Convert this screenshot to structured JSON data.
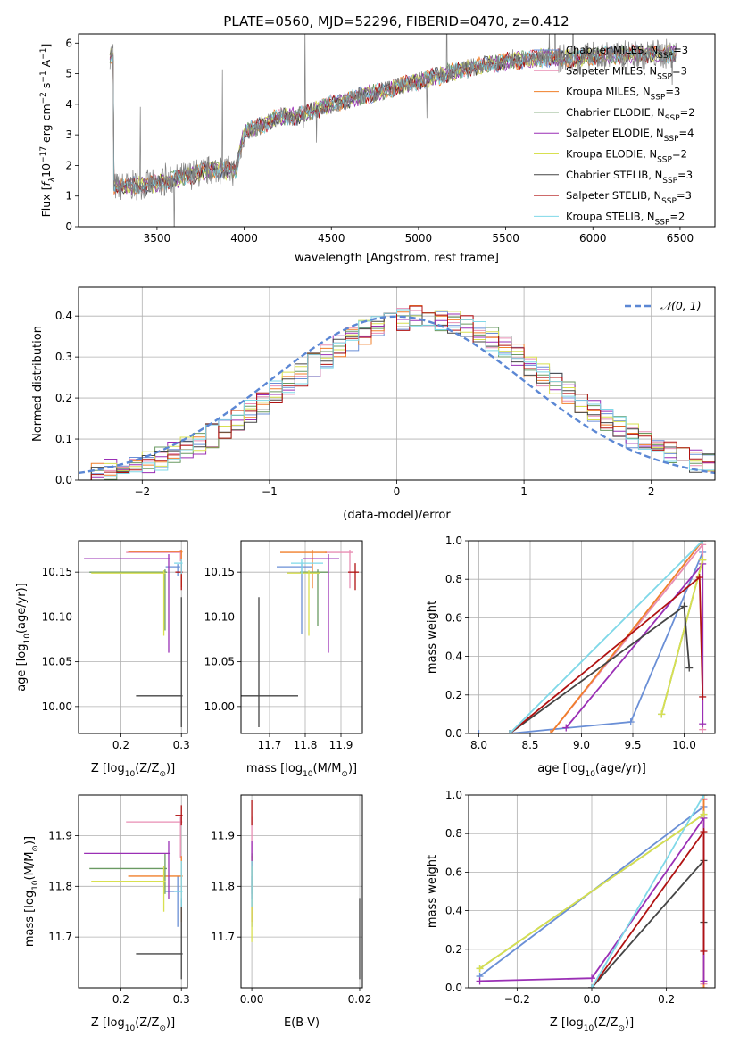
{
  "figure_title": "PLATE=0560, MJD=52296, FIBERID=0470, z=0.412",
  "chart_data": [
    {
      "id": "spectrum",
      "type": "line",
      "title": "PLATE=0560, MJD=52296, FIBERID=0470, z=0.412",
      "xlabel": "wavelength [Angstrom, rest frame]",
      "ylabel_parts": [
        "Flux [",
        "f",
        "λ",
        "10",
        "−17",
        " erg cm",
        "−2",
        " s",
        "−1",
        " A",
        "−1",
        "]"
      ],
      "xlim": [
        3050,
        6700
      ],
      "ylim": [
        0,
        6.3
      ],
      "xticks": [
        3500,
        4000,
        4500,
        5000,
        5500,
        6000,
        6500
      ],
      "yticks": [
        0,
        1,
        2,
        3,
        4,
        5,
        6
      ],
      "grid": false,
      "legend_position": "upper-right",
      "continuum_points": [
        [
          3250,
          1.3
        ],
        [
          3500,
          1.4
        ],
        [
          3700,
          1.7
        ],
        [
          3850,
          1.9
        ],
        [
          3950,
          1.8
        ],
        [
          4000,
          3.1
        ],
        [
          4100,
          3.3
        ],
        [
          4200,
          3.6
        ],
        [
          4300,
          3.6
        ],
        [
          4500,
          4.0
        ],
        [
          4700,
          4.3
        ],
        [
          4900,
          4.6
        ],
        [
          5100,
          4.9
        ],
        [
          5300,
          5.2
        ],
        [
          5500,
          5.4
        ],
        [
          5700,
          5.5
        ],
        [
          5900,
          5.5
        ],
        [
          6100,
          5.6
        ],
        [
          6400,
          5.65
        ]
      ],
      "data_range": [
        3230,
        6480
      ],
      "series": [
        {
          "label": "Chabrier MILES, N",
          "sub": "SSP",
          "suffix": "=3",
          "color": "#6a8fd6"
        },
        {
          "label": "Salpeter MILES, N",
          "sub": "SSP",
          "suffix": "=3",
          "color": "#e88eb4"
        },
        {
          "label": "Kroupa MILES, N",
          "sub": "SSP",
          "suffix": "=3",
          "color": "#f07f2a"
        },
        {
          "label": "Chabrier ELODIE, N",
          "sub": "SSP",
          "suffix": "=2",
          "color": "#6a9a62"
        },
        {
          "label": "Salpeter ELODIE, N",
          "sub": "SSP",
          "suffix": "=4",
          "color": "#9a2fb5"
        },
        {
          "label": "Kroupa ELODIE, N",
          "sub": "SSP",
          "suffix": "=2",
          "color": "#d8e050"
        },
        {
          "label": "Chabrier STELIB, N",
          "sub": "SSP",
          "suffix": "=3",
          "color": "#454545"
        },
        {
          "label": "Salpeter STELIB, N",
          "sub": "SSP",
          "suffix": "=3",
          "color": "#b01212"
        },
        {
          "label": "Kroupa STELIB, N",
          "sub": "SSP",
          "suffix": "=2",
          "color": "#7fd8e8"
        }
      ],
      "data_color": "#808080"
    },
    {
      "id": "residuals",
      "type": "histogram",
      "xlabel": "(data-model)/error",
      "ylabel": "Normed distribution",
      "xlim": [
        -2.5,
        2.5
      ],
      "ylim": [
        0,
        0.47
      ],
      "xticks": [
        -2,
        -1,
        0,
        1,
        2
      ],
      "yticks": [
        0.0,
        0.1,
        0.2,
        0.3,
        0.4
      ],
      "grid": true,
      "legend": "𝒩(0, 1)",
      "legend_position": "upper-right",
      "reference_color": "#5b87d4"
    },
    {
      "id": "age_vs_Z",
      "type": "errorbar",
      "xlabel_parts": [
        "Z [log",
        "10",
        "(Z/Z",
        "⊙",
        ")]"
      ],
      "ylabel_parts": [
        "age  [log",
        "10",
        "(age/yr)]"
      ],
      "xlim": [
        0.13,
        0.31
      ],
      "ylim": [
        9.97,
        10.185
      ],
      "xticks": [
        0.2,
        0.3
      ],
      "yticks": [
        10.0,
        10.05,
        10.1,
        10.15
      ],
      "grid": true,
      "points": [
        {
          "x": 0.294,
          "y": 10.156,
          "xerr": [
            0.02,
            0.004
          ],
          "yerr": [
            0.01,
            0.003
          ],
          "color": "#6a8fd6"
        },
        {
          "x": 0.2985,
          "y": 10.172,
          "xerr": [
            0.09,
            0.003
          ],
          "yerr": [
            0.01,
            0.003
          ],
          "color": "#e88eb4"
        },
        {
          "x": 0.3,
          "y": 10.173,
          "xerr": [
            0.088,
            0.002
          ],
          "yerr": [
            0.04,
            0.002
          ],
          "color": "#f07f2a"
        },
        {
          "x": 0.273,
          "y": 10.15,
          "xerr": [
            0.125,
            0.003
          ],
          "yerr": [
            0.065,
            0.003
          ],
          "color": "#6a9a62"
        },
        {
          "x": 0.279,
          "y": 10.165,
          "xerr": [
            0.14,
            0.003
          ],
          "yerr": [
            0.105,
            0.005
          ],
          "color": "#9a2fb5"
        },
        {
          "x": 0.271,
          "y": 10.149,
          "xerr": [
            0.12,
            0.003
          ],
          "yerr": [
            0.07,
            0.003
          ],
          "color": "#d8e050"
        },
        {
          "x": 0.3,
          "y": 10.012,
          "xerr": [
            0.075,
            0.002
          ],
          "yerr": [
            0.035,
            0.11
          ],
          "color": "#454545"
        },
        {
          "x": 0.3,
          "y": 10.15,
          "xerr": [
            0.01,
            0.002
          ],
          "yerr": [
            0.02,
            0.01
          ],
          "color": "#b01212"
        },
        {
          "x": 0.3,
          "y": 10.16,
          "xerr": [
            0.012,
            0.002
          ],
          "yerr": [
            0.012,
            0.005
          ],
          "color": "#7fd8e8"
        }
      ]
    },
    {
      "id": "age_vs_mass",
      "type": "errorbar",
      "xlabel_parts": [
        "mass [log",
        "10",
        "(M/M",
        "⊙",
        ")]"
      ],
      "ylabel_parts": [],
      "xlim": [
        11.62,
        11.96
      ],
      "ylim": [
        9.97,
        10.185
      ],
      "xticks": [
        11.7,
        11.8,
        11.9
      ],
      "yticks": [
        10.0,
        10.05,
        10.1,
        10.15
      ],
      "grid": true,
      "points": [
        {
          "x": 11.79,
          "y": 10.156,
          "xerr": [
            0.07,
            0.03
          ],
          "yerr": [
            0.075,
            0.003
          ],
          "color": "#6a8fd6"
        },
        {
          "x": 11.925,
          "y": 10.172,
          "xerr": [
            0.07,
            0.01
          ],
          "yerr": [
            0.04,
            0.003
          ],
          "color": "#e88eb4"
        },
        {
          "x": 11.82,
          "y": 10.172,
          "xerr": [
            0.09,
            0.04
          ],
          "yerr": [
            0.04,
            0.003
          ],
          "color": "#f07f2a"
        },
        {
          "x": 11.835,
          "y": 10.15,
          "xerr": [
            0.05,
            0.03
          ],
          "yerr": [
            0.06,
            0.003
          ],
          "color": "#6a9a62"
        },
        {
          "x": 11.865,
          "y": 10.165,
          "xerr": [
            0.07,
            0.03
          ],
          "yerr": [
            0.105,
            0.005
          ],
          "color": "#9a2fb5"
        },
        {
          "x": 11.81,
          "y": 10.149,
          "xerr": [
            0.06,
            0.03
          ],
          "yerr": [
            0.07,
            0.003
          ],
          "color": "#d8e050"
        },
        {
          "x": 11.67,
          "y": 10.012,
          "xerr": [
            0.05,
            0.11
          ],
          "yerr": [
            0.035,
            0.11
          ],
          "color": "#454545"
        },
        {
          "x": 11.94,
          "y": 10.15,
          "xerr": [
            0.02,
            0.01
          ],
          "yerr": [
            0.02,
            0.01
          ],
          "color": "#b01212"
        },
        {
          "x": 11.79,
          "y": 10.16,
          "xerr": [
            0.03,
            0.06
          ],
          "yerr": [
            0.012,
            0.005
          ],
          "color": "#7fd8e8"
        }
      ]
    },
    {
      "id": "massweight_vs_age",
      "type": "line",
      "xlabel_parts": [
        "age  [log",
        "10",
        "(age/yr)]"
      ],
      "ylabel": "mass weight",
      "xlim": [
        7.9,
        10.3
      ],
      "ylim": [
        0,
        1.0
      ],
      "xticks": [
        8.0,
        8.5,
        9.0,
        9.5,
        10.0
      ],
      "yticks": [
        0.0,
        0.2,
        0.4,
        0.6,
        0.8,
        1.0
      ],
      "grid": true,
      "series": [
        {
          "color": "#6a8fd6",
          "x": [
            8.0,
            8.3,
            9.48,
            10.18
          ],
          "y": [
            0.0,
            0.0,
            0.06,
            0.94
          ]
        },
        {
          "color": "#e88eb4",
          "x": [
            8.7,
            10.18,
            10.18
          ],
          "y": [
            0.0,
            0.98,
            0.02
          ]
        },
        {
          "color": "#f07f2a",
          "x": [
            8.7,
            10.18
          ],
          "y": [
            0.0,
            1.0
          ]
        },
        {
          "color": "#6a9a62",
          "x": [
            9.78,
            10.18
          ],
          "y": [
            0.1,
            0.9
          ]
        },
        {
          "color": "#9a2fb5",
          "x": [
            8.85,
            10.18,
            10.18
          ],
          "y": [
            0.03,
            0.88,
            0.05
          ]
        },
        {
          "color": "#d8e050",
          "x": [
            9.78,
            10.18
          ],
          "y": [
            0.1,
            0.9
          ]
        },
        {
          "color": "#454545",
          "x": [
            8.3,
            10.0,
            10.05
          ],
          "y": [
            0.0,
            0.66,
            0.34
          ]
        },
        {
          "color": "#b01212",
          "x": [
            8.3,
            10.15,
            10.18
          ],
          "y": [
            0.0,
            0.81,
            0.19
          ]
        },
        {
          "color": "#7fd8e8",
          "x": [
            8.3,
            10.18
          ],
          "y": [
            0.0,
            1.0
          ]
        }
      ]
    },
    {
      "id": "mass_vs_Z",
      "type": "errorbar",
      "xlabel_parts": [
        "Z [log",
        "10",
        "(Z/Z",
        "⊙",
        ")]"
      ],
      "ylabel_parts": [
        "mass [log",
        "10",
        "(M/M",
        "⊙",
        ")]"
      ],
      "xlim": [
        0.13,
        0.31
      ],
      "ylim": [
        11.6,
        11.98
      ],
      "xticks": [
        0.2,
        0.3
      ],
      "yticks": [
        11.7,
        11.8,
        11.9
      ],
      "grid": true,
      "points": [
        {
          "x": 0.294,
          "y": 11.79,
          "xerr": [
            0.02,
            0.004
          ],
          "yerr": [
            0.07,
            0.03
          ],
          "color": "#6a8fd6"
        },
        {
          "x": 0.2985,
          "y": 11.927,
          "xerr": [
            0.09,
            0.003
          ],
          "yerr": [
            0.07,
            0.01
          ],
          "color": "#e88eb4"
        },
        {
          "x": 0.3,
          "y": 11.82,
          "xerr": [
            0.088,
            0.002
          ],
          "yerr": [
            0.09,
            0.04
          ],
          "color": "#f07f2a"
        },
        {
          "x": 0.273,
          "y": 11.835,
          "xerr": [
            0.125,
            0.003
          ],
          "yerr": [
            0.05,
            0.03
          ],
          "color": "#6a9a62"
        },
        {
          "x": 0.279,
          "y": 11.865,
          "xerr": [
            0.14,
            0.003
          ],
          "yerr": [
            0.09,
            0.025
          ],
          "color": "#9a2fb5"
        },
        {
          "x": 0.271,
          "y": 11.81,
          "xerr": [
            0.12,
            0.003
          ],
          "yerr": [
            0.06,
            0.03
          ],
          "color": "#d8e050"
        },
        {
          "x": 0.3,
          "y": 11.667,
          "xerr": [
            0.075,
            0.002
          ],
          "yerr": [
            0.05,
            0.11
          ],
          "color": "#454545"
        },
        {
          "x": 0.3,
          "y": 11.94,
          "xerr": [
            0.01,
            0.002
          ],
          "yerr": [
            0.02,
            0.02
          ],
          "color": "#b01212"
        },
        {
          "x": 0.3,
          "y": 11.79,
          "xerr": [
            0.012,
            0.002
          ],
          "yerr": [
            0.03,
            0.06
          ],
          "color": "#7fd8e8"
        }
      ]
    },
    {
      "id": "mass_vs_EBV",
      "type": "errorbar",
      "xlabel": "E(B-V)",
      "ylabel_parts": [],
      "xlim": [
        -0.002,
        0.0205
      ],
      "ylim": [
        11.6,
        11.98
      ],
      "xticks": [
        0.0,
        0.02
      ],
      "xtick_labels": [
        "0.00",
        "0.02"
      ],
      "yticks": [
        11.7,
        11.8,
        11.9
      ],
      "grid": true,
      "points": [
        {
          "x": 0.0,
          "y": 11.79,
          "xerr": [
            0,
            0
          ],
          "yerr": [
            0.07,
            0.03
          ],
          "color": "#6a8fd6"
        },
        {
          "x": 0.0,
          "y": 11.927,
          "xerr": [
            0,
            0
          ],
          "yerr": [
            0.07,
            0.01
          ],
          "color": "#e88eb4"
        },
        {
          "x": 0.0,
          "y": 11.82,
          "xerr": [
            0,
            0
          ],
          "yerr": [
            0.09,
            0.04
          ],
          "color": "#f07f2a"
        },
        {
          "x": 0.0,
          "y": 11.835,
          "xerr": [
            0,
            0
          ],
          "yerr": [
            0.05,
            0.03
          ],
          "color": "#6a9a62"
        },
        {
          "x": 0.0,
          "y": 11.865,
          "xerr": [
            0,
            0
          ],
          "yerr": [
            0.09,
            0.025
          ],
          "color": "#9a2fb5"
        },
        {
          "x": 0.0,
          "y": 11.81,
          "xerr": [
            0,
            0
          ],
          "yerr": [
            0.12,
            0.03
          ],
          "color": "#d8e050"
        },
        {
          "x": 0.02,
          "y": 11.667,
          "xerr": [
            0,
            0
          ],
          "yerr": [
            0.05,
            0.11
          ],
          "color": "#454545"
        },
        {
          "x": 0.0,
          "y": 11.94,
          "xerr": [
            0,
            0
          ],
          "yerr": [
            0.02,
            0.03
          ],
          "color": "#b01212"
        },
        {
          "x": 0.0,
          "y": 11.79,
          "xerr": [
            0,
            0
          ],
          "yerr": [
            0.03,
            0.06
          ],
          "color": "#7fd8e8"
        }
      ]
    },
    {
      "id": "massweight_vs_Z",
      "type": "line",
      "xlabel_parts": [
        "Z [log",
        "10",
        "(Z/Z",
        "⊙",
        ")]"
      ],
      "ylabel": "mass weight",
      "xlim": [
        -0.33,
        0.33
      ],
      "ylim": [
        0,
        1.0
      ],
      "xticks": [
        -0.2,
        0.0,
        0.2
      ],
      "xtick_labels": [
        "−0.2",
        "0.0",
        "0.2"
      ],
      "yticks": [
        0.0,
        0.2,
        0.4,
        0.6,
        0.8,
        1.0
      ],
      "grid": true,
      "series": [
        {
          "color": "#6a8fd6",
          "x": [
            -0.3,
            0.3
          ],
          "y": [
            0.06,
            0.94
          ]
        },
        {
          "color": "#e88eb4",
          "x": [
            0.3,
            0.3
          ],
          "y": [
            0.02,
            0.98
          ]
        },
        {
          "color": "#f07f2a",
          "x": [
            0.3,
            0.3
          ],
          "y": [
            0.0,
            1.0
          ]
        },
        {
          "color": "#6a9a62",
          "x": [
            -0.3,
            0.3
          ],
          "y": [
            0.1,
            0.9
          ]
        },
        {
          "color": "#9a2fb5",
          "x": [
            -0.3,
            0.0,
            0.3,
            0.3
          ],
          "y": [
            0.035,
            0.05,
            0.88,
            0.035
          ]
        },
        {
          "color": "#d8e050",
          "x": [
            -0.3,
            0.3
          ],
          "y": [
            0.1,
            0.9
          ]
        },
        {
          "color": "#454545",
          "x": [
            0.0,
            0.3,
            0.3
          ],
          "y": [
            0.0,
            0.66,
            0.34
          ]
        },
        {
          "color": "#b01212",
          "x": [
            0.0,
            0.3,
            0.3
          ],
          "y": [
            0.0,
            0.81,
            0.19
          ]
        },
        {
          "color": "#7fd8e8",
          "x": [
            0.0,
            0.3
          ],
          "y": [
            0.0,
            1.0
          ]
        }
      ]
    }
  ]
}
